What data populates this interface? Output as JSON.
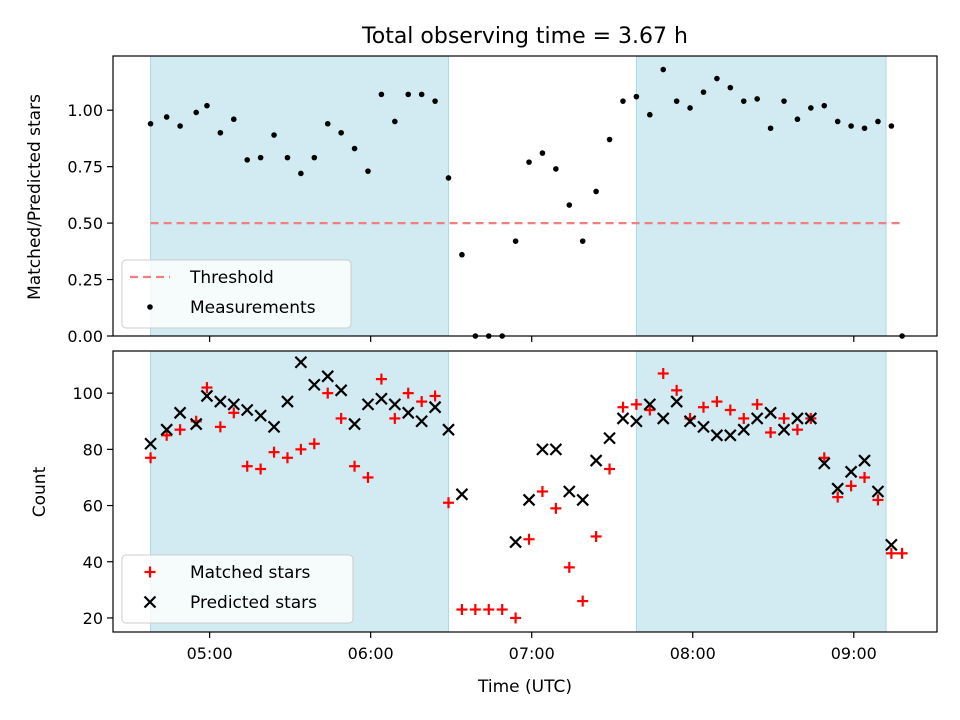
{
  "chart_data": [
    {
      "type": "scatter",
      "title": "Total observing time = 3.67 h",
      "ylabel": "Matched/Predicted stars",
      "xlabel": "",
      "ylim": [
        0,
        1.24
      ],
      "yticks": [
        "0.00",
        "0.25",
        "0.50",
        "0.75",
        "1.00"
      ],
      "shaded_intervals": [
        [
          "04:38",
          "06:29"
        ],
        [
          "07:39",
          "09:12"
        ]
      ],
      "shade_color": "#add8e6",
      "threshold": {
        "name": "Threshold",
        "value": 0.5,
        "x_start": "04:38",
        "x_end": "09:18",
        "color": "#f08080"
      },
      "legend": {
        "placement": "lower-left",
        "entries": [
          "Threshold",
          "Measurements"
        ]
      },
      "series": [
        {
          "name": "Measurements",
          "marker": "dot",
          "color": "#000000",
          "x": [
            "04:38",
            "04:44",
            "04:49",
            "04:55",
            "04:59",
            "05:04",
            "05:09",
            "05:14",
            "05:19",
            "05:24",
            "05:29",
            "05:34",
            "05:39",
            "05:44",
            "05:49",
            "05:54",
            "05:59",
            "06:04",
            "06:09",
            "06:14",
            "06:19",
            "06:24",
            "06:29",
            "06:34",
            "06:39",
            "06:44",
            "06:49",
            "06:54",
            "06:59",
            "07:04",
            "07:09",
            "07:14",
            "07:19",
            "07:24",
            "07:29",
            "07:34",
            "07:39",
            "07:44",
            "07:49",
            "07:54",
            "07:59",
            "08:04",
            "08:09",
            "08:14",
            "08:19",
            "08:24",
            "08:29",
            "08:34",
            "08:39",
            "08:44",
            "08:49",
            "08:54",
            "08:59",
            "09:04",
            "09:09",
            "09:14",
            "09:18"
          ],
          "y": [
            0.94,
            0.97,
            0.93,
            0.99,
            1.02,
            0.9,
            0.96,
            0.78,
            0.79,
            0.89,
            0.79,
            0.72,
            0.79,
            0.94,
            0.9,
            0.83,
            0.73,
            1.07,
            0.95,
            1.07,
            1.07,
            1.04,
            0.7,
            0.36,
            0.0,
            0.0,
            0.0,
            0.42,
            0.77,
            0.81,
            0.74,
            0.58,
            0.42,
            0.64,
            0.87,
            1.04,
            1.06,
            0.98,
            1.18,
            1.04,
            1.01,
            1.08,
            1.14,
            1.1,
            1.04,
            1.05,
            0.92,
            1.04,
            0.96,
            1.01,
            1.02,
            0.95,
            0.93,
            0.92,
            0.95,
            0.93,
            0.0
          ]
        }
      ]
    },
    {
      "type": "scatter",
      "title": "",
      "ylabel": "Count",
      "xlabel": "Time (UTC)",
      "ylim": [
        15,
        115
      ],
      "yticks": [
        "20",
        "40",
        "60",
        "80",
        "100"
      ],
      "xticks": [
        "05:00",
        "06:00",
        "07:00",
        "08:00",
        "09:00"
      ],
      "xlim": [
        "04:24",
        "09:31"
      ],
      "shaded_intervals": [
        [
          "04:38",
          "06:29"
        ],
        [
          "07:39",
          "09:12"
        ]
      ],
      "legend": {
        "placement": "lower-left",
        "entries": [
          "Matched stars",
          "Predicted stars"
        ]
      },
      "series": [
        {
          "name": "Matched stars",
          "marker": "plus",
          "color": "#ff0000",
          "x": [
            "04:38",
            "04:44",
            "04:49",
            "04:55",
            "04:59",
            "05:04",
            "05:09",
            "05:14",
            "05:19",
            "05:24",
            "05:29",
            "05:34",
            "05:39",
            "05:44",
            "05:49",
            "05:54",
            "05:59",
            "06:04",
            "06:09",
            "06:14",
            "06:19",
            "06:24",
            "06:29",
            "06:34",
            "06:39",
            "06:44",
            "06:49",
            "06:54",
            "06:59",
            "07:04",
            "07:09",
            "07:14",
            "07:19",
            "07:24",
            "07:29",
            "07:34",
            "07:39",
            "07:44",
            "07:49",
            "07:54",
            "07:59",
            "08:04",
            "08:09",
            "08:14",
            "08:19",
            "08:24",
            "08:29",
            "08:34",
            "08:39",
            "08:44",
            "08:49",
            "08:54",
            "08:59",
            "09:04",
            "09:09",
            "09:14",
            "09:18"
          ],
          "y": [
            77,
            85,
            87,
            90,
            102,
            88,
            93,
            74,
            73,
            79,
            77,
            80,
            82,
            100,
            91,
            74,
            70,
            105,
            91,
            100,
            97,
            99,
            61,
            23,
            23,
            23,
            23,
            20,
            48,
            65,
            59,
            38,
            26,
            49,
            73,
            95,
            96,
            94,
            107,
            101,
            91,
            95,
            97,
            94,
            91,
            96,
            86,
            91,
            87,
            91,
            77,
            63,
            67,
            70,
            62,
            43,
            43
          ]
        },
        {
          "name": "Predicted stars",
          "marker": "cross",
          "color": "#000000",
          "x": [
            "04:38",
            "04:44",
            "04:49",
            "04:55",
            "04:59",
            "05:04",
            "05:09",
            "05:14",
            "05:19",
            "05:24",
            "05:29",
            "05:34",
            "05:39",
            "05:44",
            "05:49",
            "05:54",
            "05:59",
            "06:04",
            "06:09",
            "06:14",
            "06:19",
            "06:24",
            "06:29",
            "06:34",
            "06:54",
            "06:59",
            "07:04",
            "07:09",
            "07:14",
            "07:19",
            "07:24",
            "07:29",
            "07:34",
            "07:39",
            "07:44",
            "07:49",
            "07:54",
            "07:59",
            "08:04",
            "08:09",
            "08:14",
            "08:19",
            "08:24",
            "08:29",
            "08:34",
            "08:39",
            "08:44",
            "08:49",
            "08:54",
            "08:59",
            "09:04",
            "09:09",
            "09:14"
          ],
          "y": [
            82,
            87,
            93,
            89,
            99,
            97,
            96,
            94,
            92,
            88,
            97,
            111,
            103,
            106,
            101,
            89,
            96,
            98,
            96,
            93,
            90,
            95,
            87,
            64,
            47,
            62,
            80,
            80,
            65,
            62,
            76,
            84,
            91,
            90,
            96,
            91,
            97,
            90,
            88,
            85,
            85,
            87,
            91,
            93,
            87,
            91,
            91,
            75,
            66,
            72,
            76,
            65,
            46
          ]
        }
      ]
    }
  ]
}
